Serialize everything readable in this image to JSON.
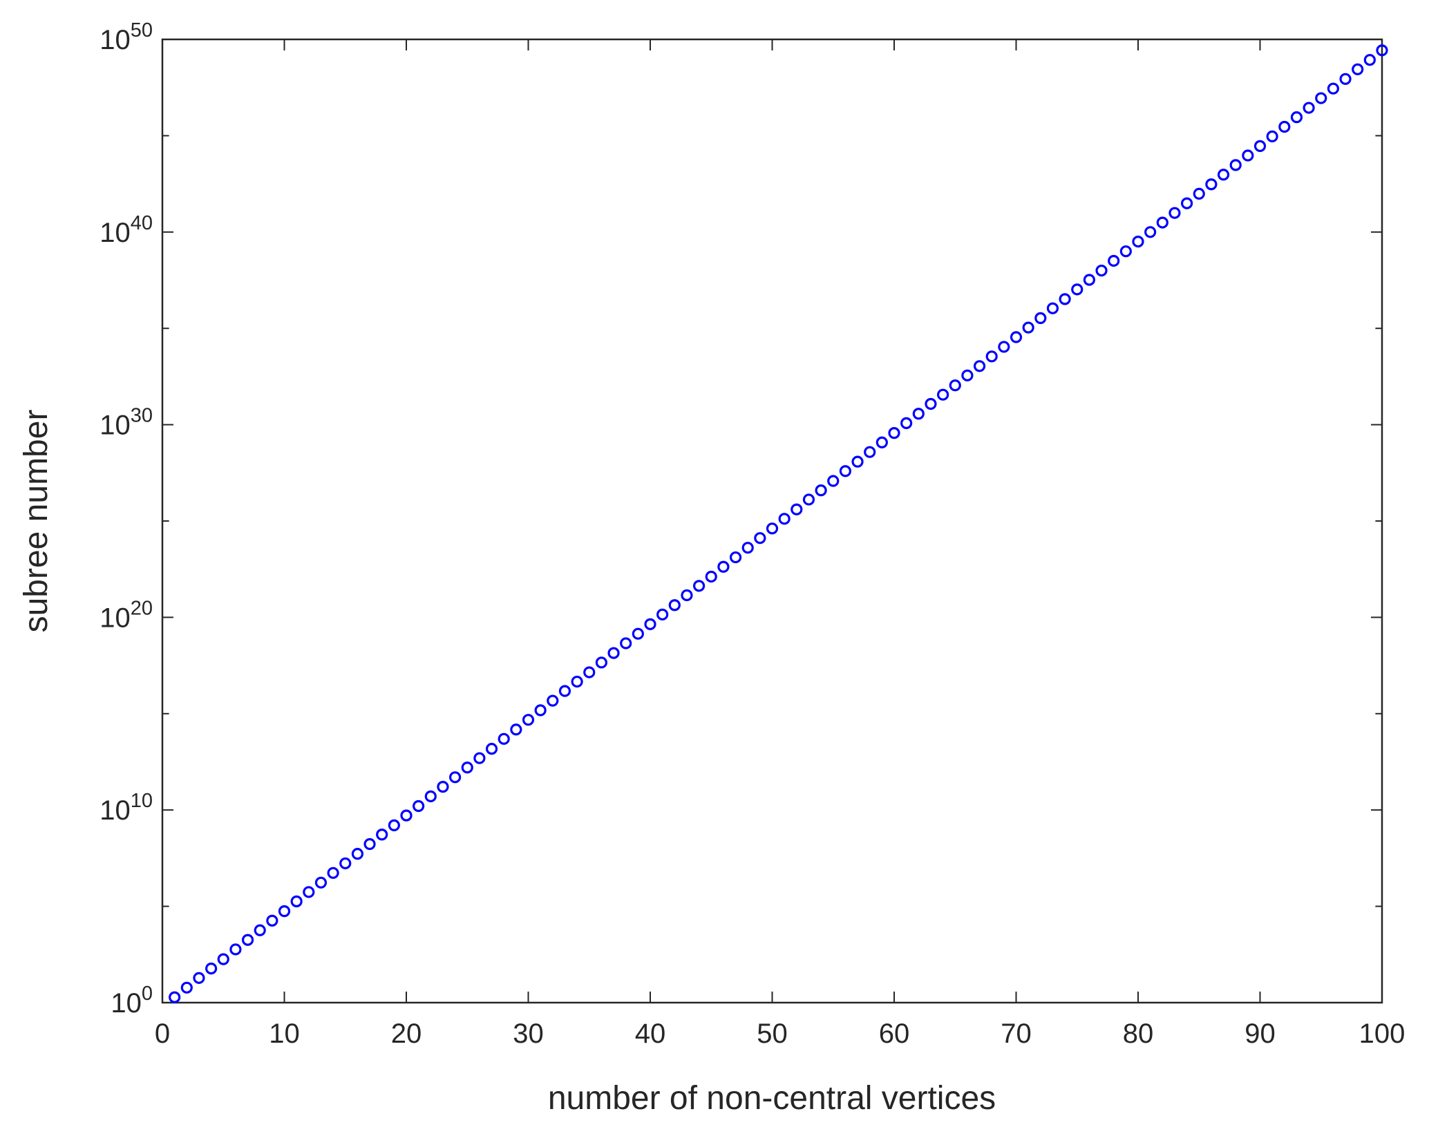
{
  "chart_data": {
    "type": "scatter",
    "xlabel": "number of non-central vertices",
    "ylabel": "subree number",
    "log_y": true,
    "color": "#0000ff",
    "marker": "circle",
    "x": [
      1,
      2,
      3,
      4,
      5,
      6,
      7,
      8,
      9,
      10,
      11,
      12,
      13,
      14,
      15,
      16,
      17,
      18,
      19,
      20,
      21,
      22,
      23,
      24,
      25,
      26,
      27,
      28,
      29,
      30,
      31,
      32,
      33,
      34,
      35,
      36,
      37,
      38,
      39,
      40,
      41,
      42,
      43,
      44,
      45,
      46,
      47,
      48,
      49,
      50,
      51,
      52,
      53,
      54,
      55,
      56,
      57,
      58,
      59,
      60,
      61,
      62,
      63,
      64,
      65,
      66,
      67,
      68,
      69,
      70,
      71,
      72,
      73,
      74,
      75,
      76,
      77,
      78,
      79,
      80,
      81,
      82,
      83,
      84,
      85,
      86,
      87,
      88,
      89,
      90,
      91,
      92,
      93,
      94,
      95,
      96,
      97,
      98,
      99,
      100
    ],
    "values": [
      1.9,
      6.0,
      19.0,
      59.0,
      180.0,
      580.0,
      1800.0,
      5700.0,
      18000.0,
      56000.0,
      180000.0,
      550000.0,
      1700000.0,
      5400000.0,
      17000000.0,
      53000000.0,
      170000000.0,
      530000000.0,
      1600000000.0,
      5200000000.0,
      16000000000.0,
      51000000000.0,
      160000000000.0,
      500000000000.0,
      1600000000000.0,
      4900000000000.0,
      15000000000000.0,
      49000000000000.0,
      150000000000000.0,
      480000000000000.0,
      1500000000000000.0,
      4700000000000000.0,
      1.5e+16,
      4.6e+16,
      1.4e+17,
      4.5e+17,
      1.4e+18,
      4.5e+18,
      1.4e+19,
      4.4e+19,
      1.4e+20,
      4.3e+20,
      1.4e+21,
      4.3e+21,
      1.3e+22,
      4.2e+22,
      1.3e+23,
      4.1e+23,
      1.3e+24,
      4.1e+24,
      1.3e+25,
      4e+25,
      1.3e+26,
      3.9e+26,
      1.2e+27,
      3.9e+27,
      1.2e+28,
      3.8e+28,
      1.2e+29,
      3.7e+29,
      1.2e+30,
      3.7e+30,
      1.2e+31,
      3.6e+31,
      1.1e+32,
      3.6e+32,
      1.1e+33,
      3.5e+33,
      1.1e+34,
      3.5e+34,
      1.1e+35,
      3.4e+35,
      1.1e+36,
      3.3e+36,
      1.05e+37,
      3.3e+37,
      1e+38,
      3.2e+38,
      1e+39,
      3.2e+39,
      1e+40,
      3.1e+40,
      9.8e+40,
      3.1e+41,
      9.7e+41,
      3e+42,
      9.5e+42,
      3e+43,
      9.4e+43,
      2.9e+44,
      9.2e+44,
      2.9e+45,
      9.1e+45,
      2.8e+46,
      8.9e+46,
      2.8e+47,
      8.8e+47,
      2.8e+48,
      8.6e+48,
      2.7e+49
    ],
    "xlim": [
      0,
      100
    ],
    "xticks": [
      0,
      10,
      20,
      30,
      40,
      50,
      60,
      70,
      80,
      90,
      100
    ],
    "ylim": [
      1,
      1e+50
    ],
    "yticks": [
      {
        "value": 1,
        "label": "10^0"
      },
      {
        "value": 10000000000.0,
        "label": "10^10"
      },
      {
        "value": 1e+20,
        "label": "10^20"
      },
      {
        "value": 1e+30,
        "label": "10^30"
      },
      {
        "value": 1e+40,
        "label": "10^40"
      },
      {
        "value": 1e+50,
        "label": "10^50"
      }
    ],
    "yminorticks": [
      100000.0,
      1000000000000000.0,
      1e+25,
      1e+35,
      1e+45
    ]
  }
}
